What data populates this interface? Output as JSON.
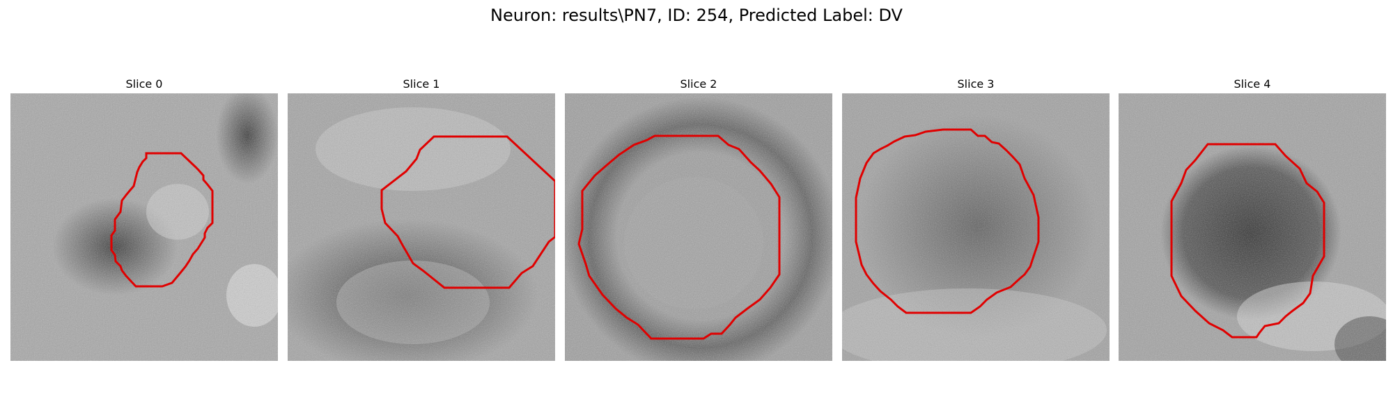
{
  "figure": {
    "title": "Neuron: results\\PN7, ID: 254, Predicted Label: DV"
  },
  "slices": [
    {
      "title": "Slice 0"
    },
    {
      "title": "Slice 1"
    },
    {
      "title": "Slice 2"
    },
    {
      "title": "Slice 3"
    },
    {
      "title": "Slice 4"
    }
  ],
  "style": {
    "contour_color": "#e00000",
    "colormap": "gray"
  }
}
